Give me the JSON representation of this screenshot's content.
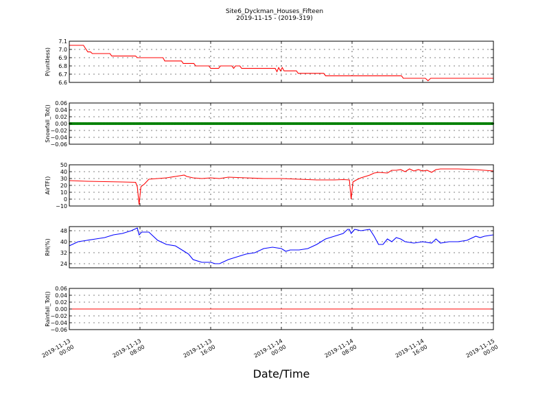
{
  "figure": {
    "title": "Site6_Dyckman_Houses_Fifteen",
    "subtitle": "2019-11-15 - (2019-319)",
    "xlabel": "Date/Time"
  },
  "chart_data": [
    {
      "type": "line",
      "ylabel": "P(unitless)",
      "x_ticks": [
        "2019-11-13\n00:00",
        "2019-11-13\n08:00",
        "2019-11-13\n16:00",
        "2019-11-14\n00:00",
        "2019-11-14\n08:00",
        "2019-11-14\n16:00",
        "2019-11-15\n00:00"
      ],
      "x_range_hours": [
        0,
        48
      ],
      "ylim": [
        6.6,
        7.1
      ],
      "y_ticks": [
        "6.6",
        "6.7",
        "6.8",
        "6.9",
        "7.0",
        "7.1"
      ],
      "y_tick_values": [
        6.6,
        6.7,
        6.8,
        6.9,
        7.0,
        7.1
      ],
      "grid": true,
      "series": [
        {
          "color": "#ff0000",
          "points": [
            [
              0,
              7.05
            ],
            [
              1.6,
              7.05
            ],
            [
              1.9,
              7.0
            ],
            [
              2.1,
              6.97
            ],
            [
              2.4,
              6.97
            ],
            [
              2.6,
              6.95
            ],
            [
              4.6,
              6.95
            ],
            [
              4.8,
              6.92
            ],
            [
              7.5,
              6.92
            ],
            [
              7.7,
              6.9
            ],
            [
              10.6,
              6.9
            ],
            [
              10.8,
              6.86
            ],
            [
              12.7,
              6.86
            ],
            [
              12.9,
              6.83
            ],
            [
              14.1,
              6.83
            ],
            [
              14.3,
              6.8
            ],
            [
              15.8,
              6.8
            ],
            [
              16.0,
              6.77
            ],
            [
              16.9,
              6.77
            ],
            [
              17.1,
              6.8
            ],
            [
              18.4,
              6.8
            ],
            [
              18.6,
              6.77
            ],
            [
              18.8,
              6.8
            ],
            [
              19.3,
              6.8
            ],
            [
              19.5,
              6.77
            ],
            [
              23.3,
              6.77
            ],
            [
              23.5,
              6.73
            ],
            [
              23.7,
              6.78
            ],
            [
              23.9,
              6.74
            ],
            [
              24.1,
              6.78
            ],
            [
              24.3,
              6.74
            ],
            [
              25.7,
              6.74
            ],
            [
              25.9,
              6.71
            ],
            [
              28.8,
              6.71
            ],
            [
              29.0,
              6.68
            ],
            [
              37.6,
              6.68
            ],
            [
              37.8,
              6.65
            ],
            [
              40.3,
              6.65
            ],
            [
              40.6,
              6.62
            ],
            [
              40.9,
              6.65
            ],
            [
              48,
              6.65
            ]
          ]
        }
      ]
    },
    {
      "type": "line",
      "ylabel": "Snowfall_Tot()",
      "ylim": [
        -0.06,
        0.06
      ],
      "y_ticks": [
        "−0.06",
        "−0.04",
        "−0.02",
        "0.00",
        "0.02",
        "0.04",
        "0.06"
      ],
      "y_tick_values": [
        -0.06,
        -0.04,
        -0.02,
        0.0,
        0.02,
        0.04,
        0.06
      ],
      "grid": true,
      "series": [
        {
          "color": "#008000",
          "style": "dots",
          "points": [
            [
              0,
              0
            ],
            [
              48,
              0
            ]
          ]
        }
      ]
    },
    {
      "type": "line",
      "ylabel": "AirTF()",
      "ylim": [
        -10,
        50
      ],
      "y_ticks": [
        "−10",
        "0",
        "10",
        "20",
        "30",
        "40",
        "50"
      ],
      "y_tick_values": [
        -10,
        0,
        10,
        20,
        30,
        40,
        50
      ],
      "grid": true,
      "series": [
        {
          "color": "#ff0000",
          "points": [
            [
              0,
              27
            ],
            [
              2,
              26
            ],
            [
              4,
              25.5
            ],
            [
              6,
              25
            ],
            [
              7.5,
              24.5
            ],
            [
              7.7,
              18
            ],
            [
              7.9,
              -8
            ],
            [
              8.1,
              18
            ],
            [
              8.5,
              22
            ],
            [
              9,
              29
            ],
            [
              10,
              30
            ],
            [
              11,
              31
            ],
            [
              12,
              33
            ],
            [
              13,
              35
            ],
            [
              13.3,
              33
            ],
            [
              14,
              31
            ],
            [
              15,
              30
            ],
            [
              16,
              31
            ],
            [
              17,
              30
            ],
            [
              18,
              32
            ],
            [
              20,
              31
            ],
            [
              22,
              30
            ],
            [
              24,
              30
            ],
            [
              26,
              29
            ],
            [
              28,
              28
            ],
            [
              30,
              28
            ],
            [
              31,
              28.5
            ],
            [
              31.7,
              28
            ],
            [
              31.9,
              0
            ],
            [
              32.1,
              25
            ],
            [
              32.5,
              28
            ],
            [
              33,
              31
            ],
            [
              34,
              35
            ],
            [
              34.5,
              38
            ],
            [
              35,
              39
            ],
            [
              36,
              38
            ],
            [
              36.5,
              42
            ],
            [
              37,
              42
            ],
            [
              37.5,
              43
            ],
            [
              38,
              40
            ],
            [
              38.5,
              44
            ],
            [
              39,
              41
            ],
            [
              39.5,
              43
            ],
            [
              40,
              41
            ],
            [
              40.5,
              42
            ],
            [
              41,
              39
            ],
            [
              41.5,
              43
            ],
            [
              42,
              44
            ],
            [
              44,
              44
            ],
            [
              46,
              43
            ],
            [
              48,
              41
            ]
          ]
        }
      ]
    },
    {
      "type": "line",
      "ylabel": "RH(%)",
      "ylim": [
        21,
        51
      ],
      "y_ticks": [
        "24",
        "32",
        "40",
        "48"
      ],
      "y_tick_values": [
        24,
        32,
        40,
        48
      ],
      "grid": true,
      "series": [
        {
          "color": "#0000ff",
          "points": [
            [
              0,
              37
            ],
            [
              1,
              40
            ],
            [
              2,
              41
            ],
            [
              3,
              42
            ],
            [
              4,
              43
            ],
            [
              5,
              45
            ],
            [
              6,
              46
            ],
            [
              7,
              48
            ],
            [
              7.7,
              50
            ],
            [
              7.9,
              45
            ],
            [
              8.2,
              47
            ],
            [
              9,
              47
            ],
            [
              9.5,
              44
            ],
            [
              10,
              41
            ],
            [
              11,
              38
            ],
            [
              12,
              37
            ],
            [
              13,
              33
            ],
            [
              13.5,
              31
            ],
            [
              14,
              27
            ],
            [
              15,
              25
            ],
            [
              16,
              25
            ],
            [
              16.5,
              24
            ],
            [
              17,
              24
            ],
            [
              18,
              27
            ],
            [
              19,
              29
            ],
            [
              20,
              31
            ],
            [
              21,
              32
            ],
            [
              22,
              35
            ],
            [
              23,
              36
            ],
            [
              24,
              35
            ],
            [
              24.5,
              33
            ],
            [
              25,
              34
            ],
            [
              26,
              34
            ],
            [
              27,
              35
            ],
            [
              28,
              38
            ],
            [
              29,
              42
            ],
            [
              30,
              44
            ],
            [
              31,
              46
            ],
            [
              31.5,
              49
            ],
            [
              31.7,
              49
            ],
            [
              31.9,
              46
            ],
            [
              32.3,
              49
            ],
            [
              33,
              48
            ],
            [
              34,
              49
            ],
            [
              34.5,
              44
            ],
            [
              35,
              38
            ],
            [
              35.5,
              38
            ],
            [
              36,
              42
            ],
            [
              36.5,
              40
            ],
            [
              37,
              43
            ],
            [
              37.5,
              42
            ],
            [
              38,
              40
            ],
            [
              39,
              39
            ],
            [
              40,
              40
            ],
            [
              41,
              39
            ],
            [
              41.5,
              42
            ],
            [
              42,
              39
            ],
            [
              43,
              40
            ],
            [
              44,
              40
            ],
            [
              45,
              41
            ],
            [
              46,
              44
            ],
            [
              46.5,
              43
            ],
            [
              47,
              44
            ],
            [
              48,
              45
            ]
          ]
        }
      ]
    },
    {
      "type": "line",
      "ylabel": "Rainfall_Tot()",
      "ylim": [
        -0.06,
        0.06
      ],
      "y_ticks": [
        "−0.06",
        "−0.04",
        "−0.02",
        "0.00",
        "0.02",
        "0.04",
        "0.06"
      ],
      "y_tick_values": [
        -0.06,
        -0.04,
        -0.02,
        0.0,
        0.02,
        0.04,
        0.06
      ],
      "grid": true,
      "series": [
        {
          "color": "#ff0000",
          "points": [
            [
              0,
              0
            ],
            [
              48,
              0
            ]
          ]
        }
      ]
    }
  ]
}
